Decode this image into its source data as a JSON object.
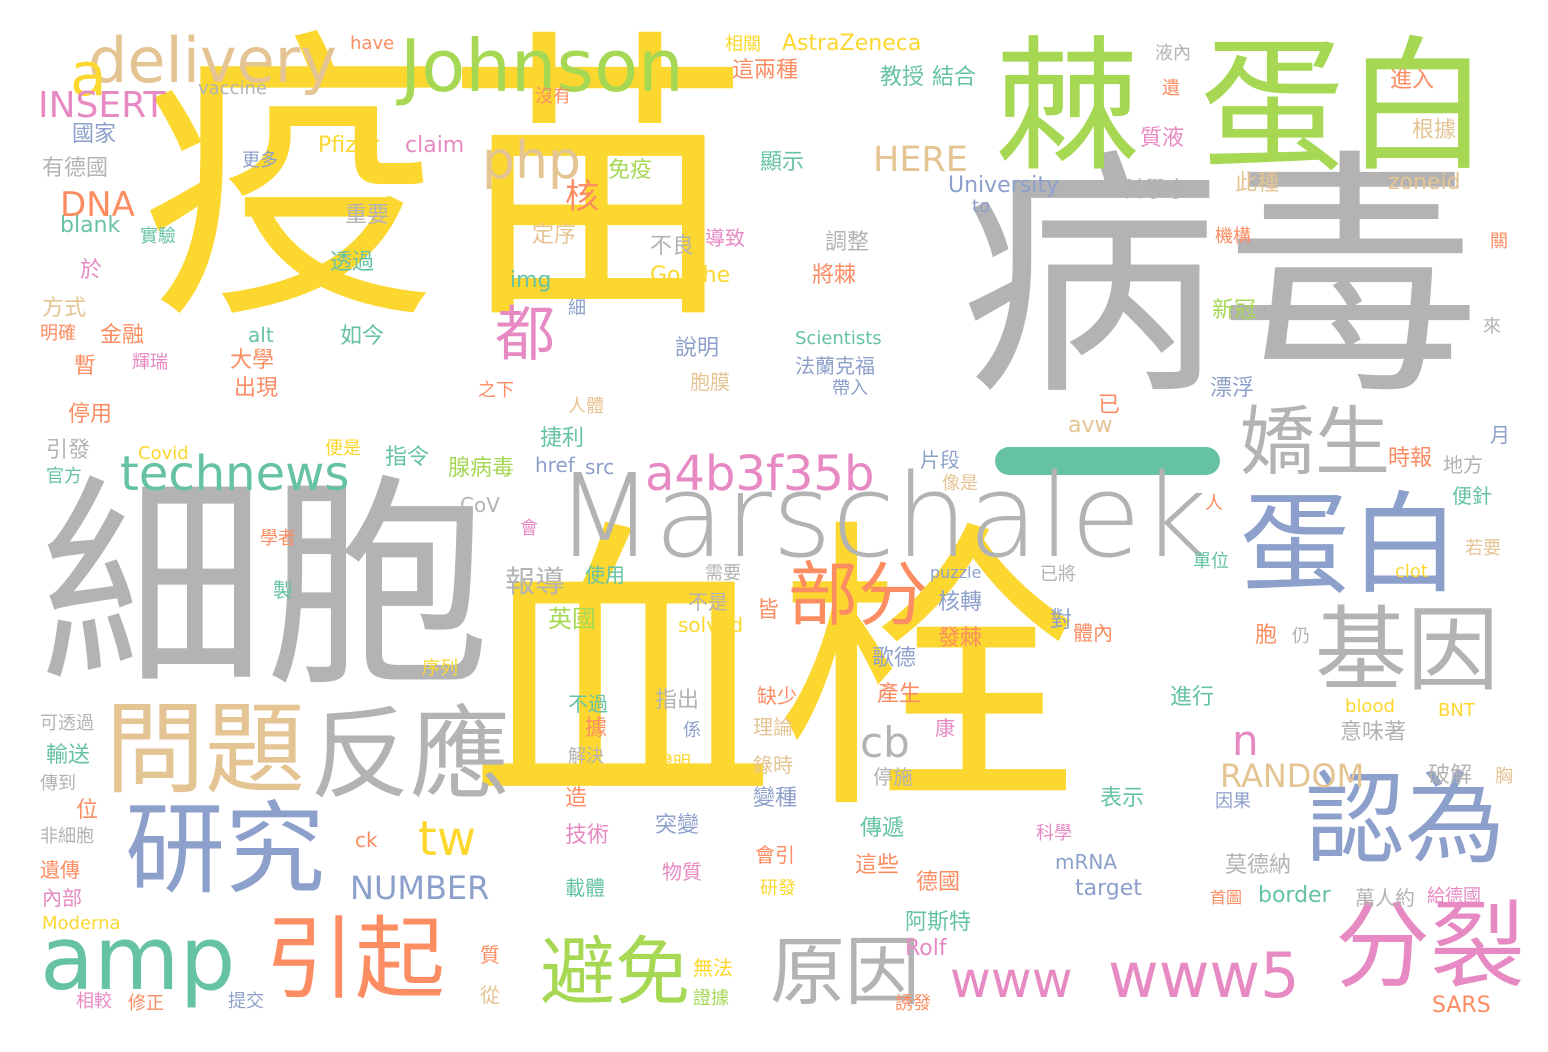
{
  "colors": {
    "yellow": "#fcd72f",
    "gray": "#b3b3b3",
    "green": "#a6d854",
    "blue": "#8da0cb",
    "teal": "#66c2a5",
    "orange": "#fc8d62",
    "pink": "#e78ac3",
    "tan": "#e5c494"
  },
  "words": [
    {
      "text": "疫苗",
      "color": "yellow"
    },
    {
      "text": "病毒",
      "color": "gray"
    },
    {
      "text": "細胞",
      "color": "gray"
    },
    {
      "text": "血栓",
      "color": "yellow"
    },
    {
      "text": "棘",
      "color": "green"
    },
    {
      "text": "蛋白",
      "color": "green"
    },
    {
      "text": "Marschalek",
      "color": "gray"
    },
    {
      "text": "蛋白",
      "color": "blue"
    },
    {
      "text": "Johnson",
      "color": "green"
    },
    {
      "text": "delivery",
      "color": "tan"
    },
    {
      "text": "a",
      "color": "yellow"
    },
    {
      "text": "php",
      "color": "tan"
    },
    {
      "text": "嬌生",
      "color": "gray"
    },
    {
      "text": "基因",
      "color": "gray"
    },
    {
      "text": "認為",
      "color": "blue"
    },
    {
      "text": "分裂",
      "color": "pink"
    },
    {
      "text": "研究",
      "color": "blue"
    },
    {
      "text": "反應",
      "color": "gray"
    },
    {
      "text": "問題",
      "color": "tan"
    },
    {
      "text": "amp",
      "color": "teal"
    },
    {
      "text": "引起",
      "color": "orange"
    },
    {
      "text": "部分",
      "color": "orange"
    },
    {
      "text": "technews",
      "color": "teal"
    },
    {
      "text": "a4b3f35b",
      "color": "pink"
    },
    {
      "text": "都",
      "color": "pink"
    },
    {
      "text": "原因",
      "color": "gray"
    },
    {
      "text": "避免",
      "color": "green"
    },
    {
      "text": "www5",
      "color": "pink"
    },
    {
      "text": "www",
      "color": "pink"
    },
    {
      "text": "tw",
      "color": "yellow"
    },
    {
      "text": "cb",
      "color": "gray"
    },
    {
      "text": "n",
      "color": "pink"
    },
    {
      "text": "RANDOM",
      "color": "tan"
    },
    {
      "text": "NUMBER",
      "color": "blue"
    },
    {
      "text": "INSERT",
      "color": "pink"
    },
    {
      "text": "DNA",
      "color": "orange"
    },
    {
      "text": "HERE",
      "color": "tan"
    },
    {
      "text": "核",
      "color": "orange"
    },
    {
      "text": "報導",
      "color": "gray"
    },
    {
      "text": "英國",
      "color": "green"
    },
    {
      "text": "AstraZeneca",
      "color": "yellow"
    },
    {
      "text": "have",
      "color": "orange"
    },
    {
      "text": "相關",
      "color": "yellow"
    },
    {
      "text": "vaccine",
      "color": "gray"
    },
    {
      "text": "國家",
      "color": "blue"
    },
    {
      "text": "有德國",
      "color": "gray"
    },
    {
      "text": "blank",
      "color": "teal"
    },
    {
      "text": "Pfizer",
      "color": "yellow"
    },
    {
      "text": "claim",
      "color": "pink"
    },
    {
      "text": "更多",
      "color": "blue"
    },
    {
      "text": "重要",
      "color": "gray"
    },
    {
      "text": "免疫",
      "color": "green"
    },
    {
      "text": "顯示",
      "color": "teal"
    },
    {
      "text": "教授",
      "color": "teal"
    },
    {
      "text": "結合",
      "color": "teal"
    },
    {
      "text": "這兩種",
      "color": "orange"
    },
    {
      "text": "液內",
      "color": "gray"
    },
    {
      "text": "進入",
      "color": "orange"
    },
    {
      "text": "沒有",
      "color": "orange"
    },
    {
      "text": "遺",
      "color": "orange"
    },
    {
      "text": "質液",
      "color": "pink"
    },
    {
      "text": "根據",
      "color": "tan"
    },
    {
      "text": "University",
      "color": "blue"
    },
    {
      "text": "科學家",
      "color": "gray"
    },
    {
      "text": "此種",
      "color": "tan"
    },
    {
      "text": "zoneid",
      "color": "tan"
    },
    {
      "text": "to",
      "color": "blue"
    },
    {
      "text": "機構",
      "color": "orange"
    },
    {
      "text": "關",
      "color": "orange"
    },
    {
      "text": "實驗",
      "color": "teal"
    },
    {
      "text": "於",
      "color": "pink"
    },
    {
      "text": "方式",
      "color": "tan"
    },
    {
      "text": "明確",
      "color": "orange"
    },
    {
      "text": "金融",
      "color": "orange"
    },
    {
      "text": "暫",
      "color": "orange"
    },
    {
      "text": "輝瑞",
      "color": "pink"
    },
    {
      "text": "大學",
      "color": "orange"
    },
    {
      "text": "出現",
      "color": "orange"
    },
    {
      "text": "停用",
      "color": "orange"
    },
    {
      "text": "引發",
      "color": "gray"
    },
    {
      "text": "官方",
      "color": "teal"
    },
    {
      "text": "Covid",
      "color": "yellow"
    },
    {
      "text": "透過",
      "color": "teal"
    },
    {
      "text": "定序",
      "color": "tan"
    },
    {
      "text": "img",
      "color": "teal"
    },
    {
      "text": "alt",
      "color": "teal"
    },
    {
      "text": "如今",
      "color": "teal"
    },
    {
      "text": "細",
      "color": "blue"
    },
    {
      "text": "不良",
      "color": "gray"
    },
    {
      "text": "導致",
      "color": "pink"
    },
    {
      "text": "調整",
      "color": "gray"
    },
    {
      "text": "將棘",
      "color": "orange"
    },
    {
      "text": "Goethe",
      "color": "yellow"
    },
    {
      "text": "Scientists",
      "color": "teal"
    },
    {
      "text": "說明",
      "color": "blue"
    },
    {
      "text": "法蘭克福",
      "color": "blue"
    },
    {
      "text": "帶入",
      "color": "blue"
    },
    {
      "text": "胞膜",
      "color": "tan"
    },
    {
      "text": "之下",
      "color": "orange"
    },
    {
      "text": "人體",
      "color": "tan"
    },
    {
      "text": "捷利",
      "color": "teal"
    },
    {
      "text": "便是",
      "color": "yellow"
    },
    {
      "text": "指令",
      "color": "teal"
    },
    {
      "text": "腺病毒",
      "color": "green"
    },
    {
      "text": "href",
      "color": "blue"
    },
    {
      "text": "src",
      "color": "blue"
    },
    {
      "text": "CoV",
      "color": "gray"
    },
    {
      "text": "會",
      "color": "pink"
    },
    {
      "text": "片段",
      "color": "blue"
    },
    {
      "text": "像是",
      "color": "tan"
    },
    {
      "text": "已",
      "color": "orange"
    },
    {
      "text": "avw",
      "color": "tan"
    },
    {
      "text": "新冠",
      "color": "green"
    },
    {
      "text": "來",
      "color": "gray"
    },
    {
      "text": "漂浮",
      "color": "blue"
    },
    {
      "text": "月",
      "color": "blue"
    },
    {
      "text": "時報",
      "color": "orange"
    },
    {
      "text": "地方",
      "color": "gray"
    },
    {
      "text": "便針",
      "color": "teal"
    },
    {
      "text": "人",
      "color": "orange"
    },
    {
      "text": "學者",
      "color": "orange"
    },
    {
      "text": "製",
      "color": "teal"
    },
    {
      "text": "使用",
      "color": "teal"
    },
    {
      "text": "需要",
      "color": "gray"
    },
    {
      "text": "皆",
      "color": "orange"
    },
    {
      "text": "不是",
      "color": "gray"
    },
    {
      "text": "solved",
      "color": "yellow"
    },
    {
      "text": "核轉",
      "color": "blue"
    },
    {
      "text": "puzzle",
      "color": "blue"
    },
    {
      "text": "已將",
      "color": "gray"
    },
    {
      "text": "若要",
      "color": "tan"
    },
    {
      "text": "單位",
      "color": "teal"
    },
    {
      "text": "clot",
      "color": "yellow"
    },
    {
      "text": "對",
      "color": "blue"
    },
    {
      "text": "體內",
      "color": "orange"
    },
    {
      "text": "胞",
      "color": "orange"
    },
    {
      "text": "仍",
      "color": "gray"
    },
    {
      "text": "發棘",
      "color": "orange"
    },
    {
      "text": "歌德",
      "color": "blue"
    },
    {
      "text": "序列",
      "color": "yellow"
    },
    {
      "text": "產生",
      "color": "orange"
    },
    {
      "text": "不過",
      "color": "teal"
    },
    {
      "text": "指出",
      "color": "gray"
    },
    {
      "text": "缺少",
      "color": "orange"
    },
    {
      "text": "據",
      "color": "orange"
    },
    {
      "text": "係",
      "color": "blue"
    },
    {
      "text": "理論",
      "color": "tan"
    },
    {
      "text": "康",
      "color": "pink"
    },
    {
      "text": "進行",
      "color": "teal"
    },
    {
      "text": "blood",
      "color": "yellow"
    },
    {
      "text": "BNT",
      "color": "yellow"
    },
    {
      "text": "意味著",
      "color": "gray"
    },
    {
      "text": "可透過",
      "color": "gray"
    },
    {
      "text": "輸送",
      "color": "teal"
    },
    {
      "text": "解決",
      "color": "gray"
    },
    {
      "text": "證明",
      "color": "yellow"
    },
    {
      "text": "錄時",
      "color": "tan"
    },
    {
      "text": "停施",
      "color": "gray"
    },
    {
      "text": "破解",
      "color": "gray"
    },
    {
      "text": "胸",
      "color": "tan"
    },
    {
      "text": "傳到",
      "color": "gray"
    },
    {
      "text": "造",
      "color": "orange"
    },
    {
      "text": "變種",
      "color": "blue"
    },
    {
      "text": "表示",
      "color": "teal"
    },
    {
      "text": "因果",
      "color": "blue"
    },
    {
      "text": "位",
      "color": "orange"
    },
    {
      "text": "非細胞",
      "color": "gray"
    },
    {
      "text": "技術",
      "color": "pink"
    },
    {
      "text": "突變",
      "color": "blue"
    },
    {
      "text": "傳遞",
      "color": "teal"
    },
    {
      "text": "科學",
      "color": "pink"
    },
    {
      "text": "ck",
      "color": "orange"
    },
    {
      "text": "會引",
      "color": "orange"
    },
    {
      "text": "這些",
      "color": "orange"
    },
    {
      "text": "mRNA",
      "color": "blue"
    },
    {
      "text": "莫德納",
      "color": "gray"
    },
    {
      "text": "遺傳",
      "color": "orange"
    },
    {
      "text": "載體",
      "color": "teal"
    },
    {
      "text": "物質",
      "color": "pink"
    },
    {
      "text": "研發",
      "color": "yellow"
    },
    {
      "text": "德國",
      "color": "orange"
    },
    {
      "text": "target",
      "color": "blue"
    },
    {
      "text": "border",
      "color": "teal"
    },
    {
      "text": "萬人約",
      "color": "gray"
    },
    {
      "text": "內部",
      "color": "pink"
    },
    {
      "text": "首圖",
      "color": "orange"
    },
    {
      "text": "給德國",
      "color": "pink"
    },
    {
      "text": "Moderna",
      "color": "yellow"
    },
    {
      "text": "阿斯特",
      "color": "teal"
    },
    {
      "text": "Rolf",
      "color": "pink"
    },
    {
      "text": "質",
      "color": "orange"
    },
    {
      "text": "無法",
      "color": "yellow"
    },
    {
      "text": "證據",
      "color": "green"
    },
    {
      "text": "從",
      "color": "tan"
    },
    {
      "text": "相較",
      "color": "pink"
    },
    {
      "text": "修正",
      "color": "orange"
    },
    {
      "text": "提交",
      "color": "blue"
    },
    {
      "text": "誘發",
      "color": "orange"
    },
    {
      "text": "SARS",
      "color": "orange"
    }
  ]
}
